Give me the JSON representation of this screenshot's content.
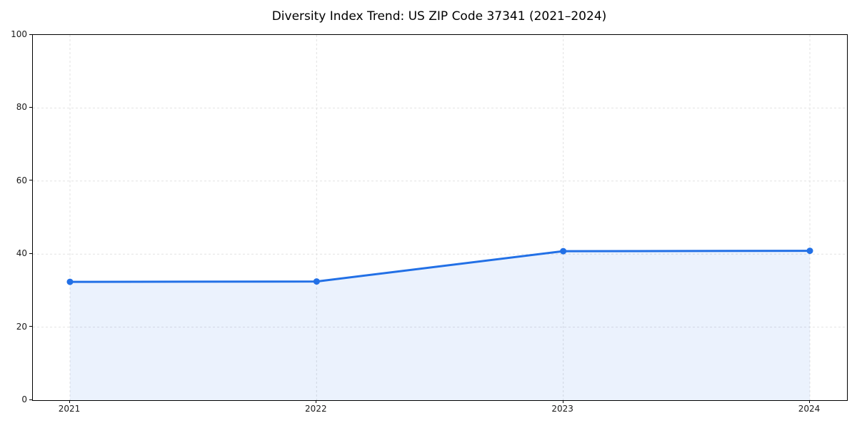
{
  "chart_data": {
    "type": "area",
    "title": "Diversity Index Trend: US ZIP Code 37341 (2021–2024)",
    "categories": [
      "2021",
      "2022",
      "2023",
      "2024"
    ],
    "values": [
      32.4,
      32.5,
      40.8,
      40.9
    ],
    "xlabel": "",
    "ylabel": "",
    "ylim": [
      0,
      100
    ],
    "yticks": [
      0,
      20,
      40,
      60,
      80,
      100
    ],
    "grid": true,
    "grid_style": "dashed",
    "legend": "none",
    "marker": "circle",
    "colors": {
      "line": "#2270e6",
      "marker": "#2270e6",
      "fill": "#2270e6",
      "fill_opacity": 0.09,
      "grid": "#e2e2e2",
      "spine": "#000000",
      "tick_label": "#1a1a1a",
      "title": "#000000",
      "background": "#ffffff"
    }
  }
}
